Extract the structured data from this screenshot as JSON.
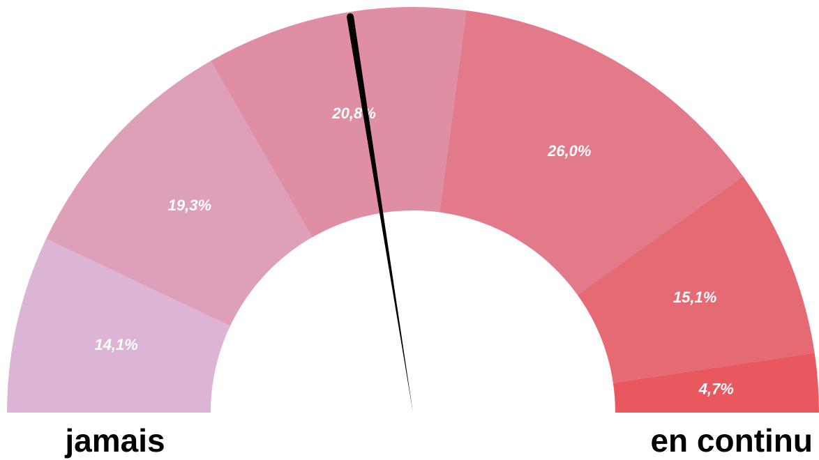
{
  "chart_data": {
    "type": "gauge",
    "categories": [
      null,
      null,
      null,
      null,
      null,
      null
    ],
    "values": [
      14.1,
      19.3,
      20.8,
      26.0,
      15.1,
      4.7
    ],
    "value_labels": [
      "14,1%",
      "19,3%",
      "20,8%",
      "26,0%",
      "15,1%",
      "4,7%"
    ],
    "colors": [
      "#dbb4d6",
      "#dea0b9",
      "#e08ea4",
      "#e27a8a",
      "#e66a74",
      "#e9575f"
    ],
    "needle": 45,
    "min_label": "jamais",
    "max_label": "en continu"
  }
}
